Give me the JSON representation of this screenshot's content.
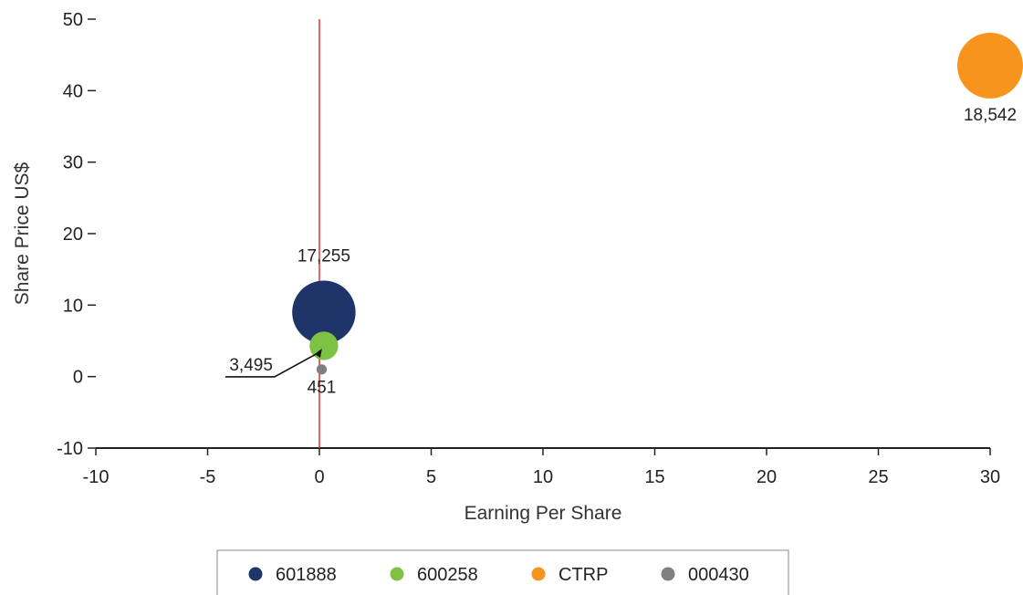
{
  "chart_data": {
    "type": "bubble",
    "xlabel": "Earning Per Share",
    "ylabel": "Share Price US$",
    "xlim": [
      -10,
      30
    ],
    "ylim": [
      -10,
      50
    ],
    "xticks": [
      -10,
      -5,
      0,
      5,
      10,
      15,
      20,
      25,
      30
    ],
    "yticks": [
      -10,
      0,
      10,
      20,
      30,
      40,
      50
    ],
    "reference_line": {
      "axis": "x",
      "value": 0,
      "color": "#e0312b"
    },
    "legend_position": "bottom",
    "series": [
      {
        "name": "601888",
        "color": "#1f3468",
        "x": 0.2,
        "y": 9.0,
        "size": 17255,
        "label": "17,255"
      },
      {
        "name": "600258",
        "color": "#7dc242",
        "x": 0.2,
        "y": 4.3,
        "size": 3495,
        "label": "3,495"
      },
      {
        "name": "CTRP",
        "color": "#f7941d",
        "x": 30.0,
        "y": 43.5,
        "size": 18542,
        "label": "18,542"
      },
      {
        "name": "000430",
        "color": "#808080",
        "x": 0.1,
        "y": 1.0,
        "size": 451,
        "label": "451"
      }
    ]
  }
}
